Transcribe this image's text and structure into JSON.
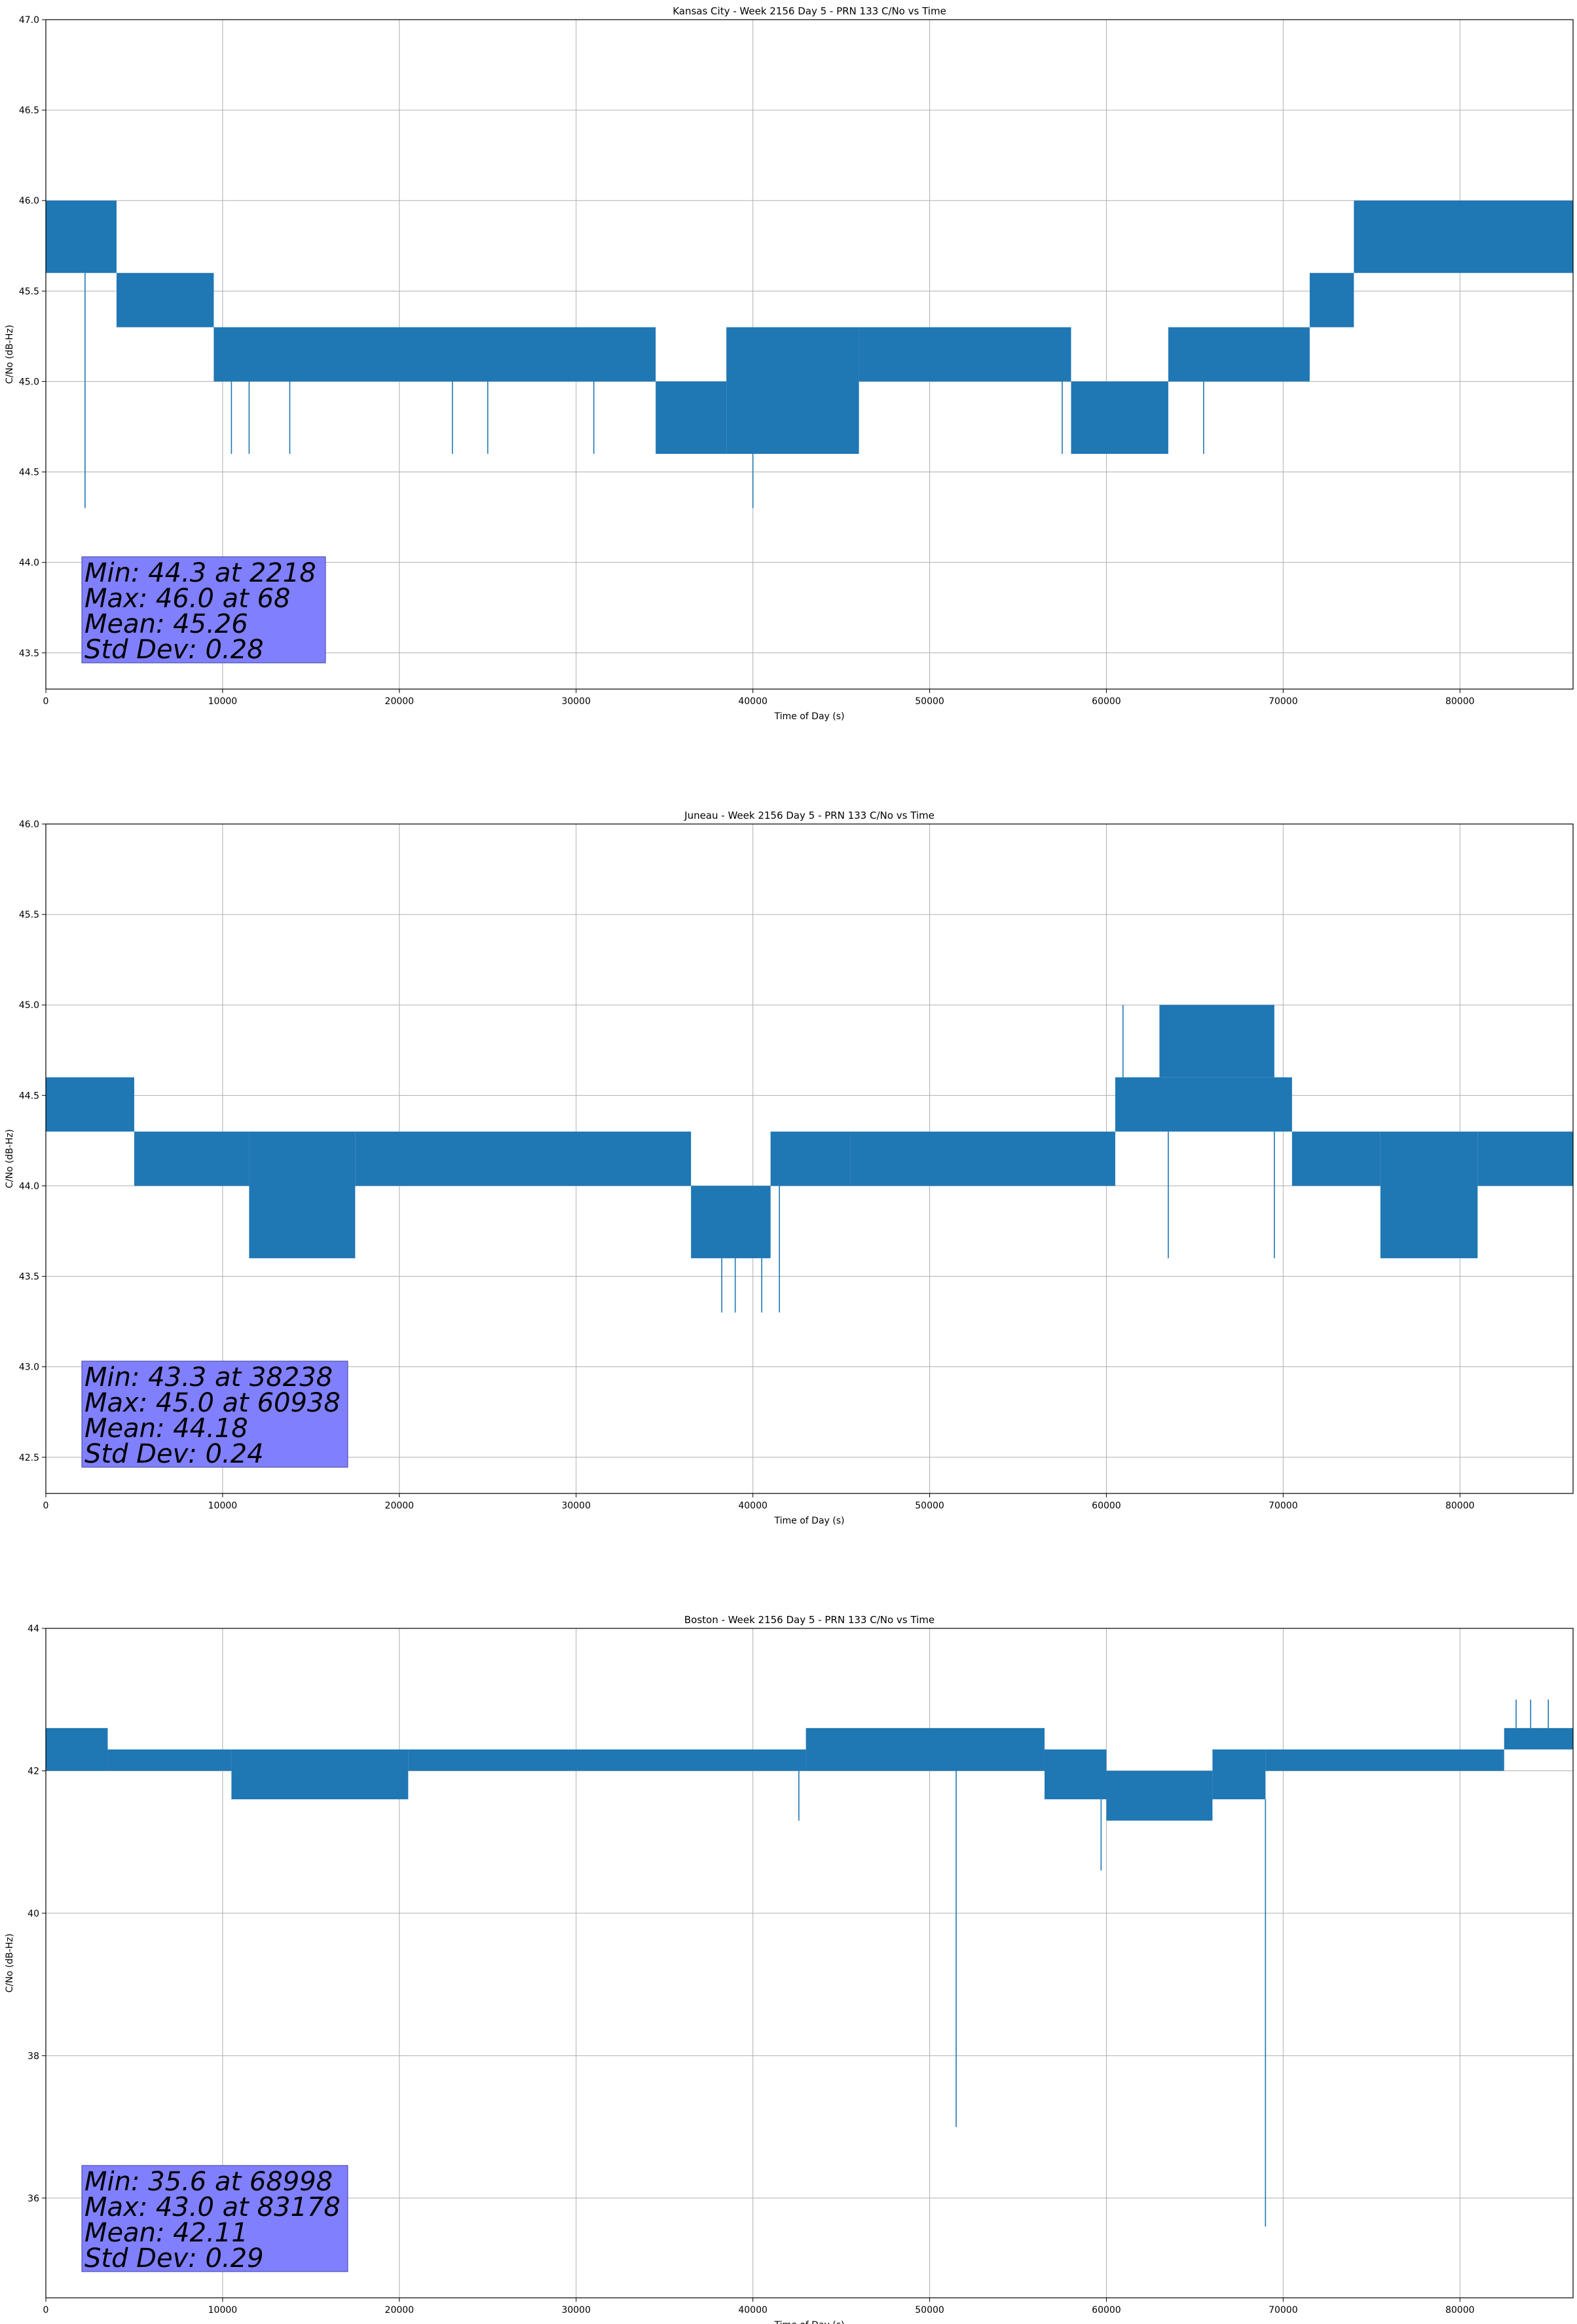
{
  "colors": {
    "line": "#1f77b4",
    "stats_box": "#8080ff",
    "grid": "#b0b0b0",
    "axes": "#000000"
  },
  "chart_data": [
    {
      "type": "line",
      "title": "Kansas City - Week 2156 Day 5 - PRN 133 C/No vs Time",
      "xlabel": "Time of Day (s)",
      "ylabel": "C/No (dB-Hz)",
      "xlim": [
        0,
        86400
      ],
      "ylim": [
        43.3,
        47.0
      ],
      "xticks": [
        "0",
        "10000",
        "20000",
        "30000",
        "40000",
        "50000",
        "60000",
        "70000",
        "80000"
      ],
      "yticks": [
        "43.5",
        "44.0",
        "44.5",
        "45.0",
        "45.5",
        "46.0",
        "46.5",
        "47.0"
      ],
      "grid": true,
      "stats": [
        "Min: 44.3 at 2218",
        "Max: 46.0 at 68",
        "Mean: 45.26",
        "Std Dev: 0.28"
      ],
      "series": [
        {
          "bands": [
            {
              "x": [
                0,
                1500
              ],
              "y": [
                45.6,
                46.0
              ]
            },
            {
              "x": [
                1500,
                4000
              ],
              "y": [
                45.6,
                46.0
              ]
            },
            {
              "x": [
                4000,
                9500
              ],
              "y": [
                45.3,
                45.6
              ]
            },
            {
              "x": [
                9500,
                34500
              ],
              "y": [
                45.0,
                45.3
              ]
            },
            {
              "x": [
                34500,
                38500
              ],
              "y": [
                44.6,
                45.0
              ]
            },
            {
              "x": [
                38500,
                46000
              ],
              "y": [
                44.6,
                45.3
              ]
            },
            {
              "x": [
                46000,
                58000
              ],
              "y": [
                45.0,
                45.3
              ]
            },
            {
              "x": [
                58000,
                63500
              ],
              "y": [
                44.6,
                45.0
              ]
            },
            {
              "x": [
                63500,
                71500
              ],
              "y": [
                45.0,
                45.3
              ]
            },
            {
              "x": [
                71500,
                74000
              ],
              "y": [
                45.3,
                45.6
              ]
            },
            {
              "x": [
                74000,
                86400
              ],
              "y": [
                45.6,
                46.0
              ]
            }
          ],
          "spikes": [
            {
              "x": 2218,
              "y": 44.3
            },
            {
              "x": 40000,
              "y": 44.3
            },
            {
              "x": 10500,
              "y": 44.6
            },
            {
              "x": 11500,
              "y": 44.6
            },
            {
              "x": 13800,
              "y": 44.6
            },
            {
              "x": 23000,
              "y": 44.6
            },
            {
              "x": 25000,
              "y": 44.6
            },
            {
              "x": 31000,
              "y": 44.6
            },
            {
              "x": 57500,
              "y": 44.6
            },
            {
              "x": 65500,
              "y": 44.6
            }
          ]
        }
      ]
    },
    {
      "type": "line",
      "title": "Juneau - Week 2156 Day 5 - PRN 133 C/No vs Time",
      "xlabel": "Time of Day (s)",
      "ylabel": "C/No (dB-Hz)",
      "xlim": [
        0,
        86400
      ],
      "ylim": [
        42.3,
        46.0
      ],
      "xticks": [
        "0",
        "10000",
        "20000",
        "30000",
        "40000",
        "50000",
        "60000",
        "70000",
        "80000"
      ],
      "yticks": [
        "42.5",
        "43.0",
        "43.5",
        "44.0",
        "44.5",
        "45.0",
        "45.5",
        "46.0"
      ],
      "grid": true,
      "stats": [
        "Min: 43.3 at 38238",
        "Max: 45.0 at 60938",
        "Mean: 44.18",
        "Std Dev: 0.24"
      ],
      "series": [
        {
          "bands": [
            {
              "x": [
                0,
                5000
              ],
              "y": [
                44.3,
                44.6
              ]
            },
            {
              "x": [
                5000,
                11500
              ],
              "y": [
                44.0,
                44.3
              ]
            },
            {
              "x": [
                11500,
                17500
              ],
              "y": [
                43.6,
                44.3
              ]
            },
            {
              "x": [
                17500,
                36500
              ],
              "y": [
                44.0,
                44.3
              ]
            },
            {
              "x": [
                36500,
                41000
              ],
              "y": [
                43.6,
                44.0
              ]
            },
            {
              "x": [
                41000,
                45500
              ],
              "y": [
                44.0,
                44.3
              ]
            },
            {
              "x": [
                45500,
                60500
              ],
              "y": [
                44.0,
                44.3
              ]
            },
            {
              "x": [
                60500,
                70500
              ],
              "y": [
                44.3,
                44.6
              ]
            },
            {
              "x": [
                63000,
                69500
              ],
              "y": [
                44.6,
                45.0
              ]
            },
            {
              "x": [
                70500,
                75500
              ],
              "y": [
                44.0,
                44.3
              ]
            },
            {
              "x": [
                75500,
                81000
              ],
              "y": [
                43.6,
                44.3
              ]
            },
            {
              "x": [
                81000,
                86400
              ],
              "y": [
                44.0,
                44.3
              ]
            }
          ],
          "spikes": [
            {
              "x": 38238,
              "y": 43.3
            },
            {
              "x": 39000,
              "y": 43.3
            },
            {
              "x": 40500,
              "y": 43.3
            },
            {
              "x": 41500,
              "y": 43.3
            },
            {
              "x": 60938,
              "y": 45.0
            },
            {
              "x": 63500,
              "y": 43.6
            },
            {
              "x": 69500,
              "y": 43.6
            }
          ]
        }
      ]
    },
    {
      "type": "line",
      "title": "Boston - Week 2156 Day 5 - PRN 133 C/No vs Time",
      "xlabel": "Time of Day (s)",
      "ylabel": "C/No (dB-Hz)",
      "xlim": [
        0,
        86400
      ],
      "ylim": [
        34.6,
        44.0
      ],
      "xticks": [
        "0",
        "10000",
        "20000",
        "30000",
        "40000",
        "50000",
        "60000",
        "70000",
        "80000"
      ],
      "yticks": [
        "36",
        "38",
        "40",
        "42",
        "44"
      ],
      "grid": true,
      "stats": [
        "Min: 35.6 at 68998",
        "Max: 43.0 at 83178",
        "Mean: 42.11",
        "Std Dev: 0.29"
      ],
      "series": [
        {
          "bands": [
            {
              "x": [
                0,
                3500
              ],
              "y": [
                42.0,
                42.6
              ]
            },
            {
              "x": [
                3500,
                10500
              ],
              "y": [
                42.0,
                42.3
              ]
            },
            {
              "x": [
                10500,
                20500
              ],
              "y": [
                41.6,
                42.3
              ]
            },
            {
              "x": [
                20500,
                43000
              ],
              "y": [
                42.0,
                42.3
              ]
            },
            {
              "x": [
                43000,
                56500
              ],
              "y": [
                42.0,
                42.6
              ]
            },
            {
              "x": [
                56500,
                60000
              ],
              "y": [
                41.6,
                42.3
              ]
            },
            {
              "x": [
                60000,
                66000
              ],
              "y": [
                41.3,
                42.0
              ]
            },
            {
              "x": [
                66000,
                69000
              ],
              "y": [
                41.6,
                42.3
              ]
            },
            {
              "x": [
                69000,
                82500
              ],
              "y": [
                42.0,
                42.3
              ]
            },
            {
              "x": [
                82500,
                86400
              ],
              "y": [
                42.3,
                42.6
              ]
            }
          ],
          "spikes": [
            {
              "x": 51500,
              "y": 37.0
            },
            {
              "x": 68998,
              "y": 35.6
            },
            {
              "x": 42600,
              "y": 41.3
            },
            {
              "x": 59700,
              "y": 40.6
            },
            {
              "x": 83178,
              "y": 43.0
            },
            {
              "x": 84000,
              "y": 43.0
            },
            {
              "x": 85000,
              "y": 43.0
            }
          ]
        }
      ]
    }
  ]
}
